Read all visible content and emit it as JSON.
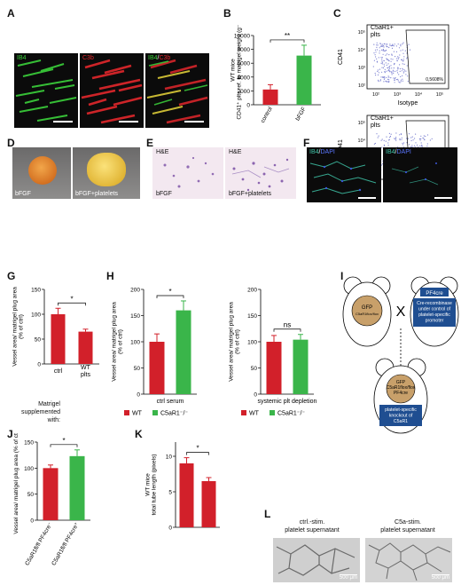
{
  "panels": {
    "A": {
      "letter": "A",
      "ch_ib4": "IB4",
      "ch_c3b": "C3b",
      "ch_merge_a": "IB4",
      "ch_merge_sep": "/",
      "ch_merge_b": "C3b"
    },
    "B": {
      "letter": "B"
    },
    "C": {
      "letter": "C",
      "top": {
        "gate_label": "C5aR1+\nplts",
        "gate_value": "0,5608%",
        "xlabel": "Isotype",
        "ylabel": "CD41"
      },
      "bottom": {
        "gate_label": "C5aR1+\nplts",
        "gate_value": "19,9127%",
        "xlabel": "C5aR1",
        "ylabel": "CD41"
      },
      "ticks": [
        "10²",
        "10³",
        "10⁴",
        "10⁵"
      ]
    },
    "D": {
      "letter": "D",
      "left": "bFGF",
      "right": "bFGF+platelets"
    },
    "E": {
      "letter": "E",
      "left_title": "H&E",
      "right_title": "H&E",
      "left": "bFGF",
      "right": "bFGF+platelets"
    },
    "F": {
      "letter": "F",
      "a": "IB4",
      "sep": "/",
      "b": "DAPI"
    },
    "G": {
      "letter": "G",
      "supp": "Matrigel\nsupplemented\nwith:"
    },
    "H": {
      "letter": "H",
      "legend_wt": "WT",
      "legend_ko": "C5aR1⁻/⁻"
    },
    "I": {
      "letter": "I",
      "mouse1": "GFP\nC5aR1flox/flox",
      "mouse2_title": "PF4cre",
      "mouse2_text": "Cre-recombinase\nunder control of\nplatelet-specific\npromoter",
      "mouse3": "GFP\nC5aR1flox/flox\nPF4cre",
      "mouse3_text": "platelet-specific\nknockout of\nC5aR1",
      "cross": "X"
    },
    "J": {
      "letter": "J"
    },
    "K": {
      "letter": "K"
    },
    "L": {
      "letter": "L",
      "left": "ctrl.-stim.\nplatelet supernatant",
      "right": "C5a-stim.\nplatelet supernatant",
      "scale_left": "500 μm",
      "scale_right": "500 μm"
    }
  },
  "chart_data": [
    {
      "panel": "B",
      "type": "bar",
      "title": "",
      "xlabel": "",
      "ylabel": "WT mice\nCD41⁺ plts ref. to matrigel weight (g⁻¹)",
      "ylim": [
        0,
        10000
      ],
      "yticks": [
        0,
        2000,
        4000,
        6000,
        8000,
        10000
      ],
      "categories": [
        "control",
        "bFGF"
      ],
      "values": [
        2200,
        7100
      ],
      "errors": [
        700,
        1500
      ],
      "colors": [
        "#d2202a",
        "#3ab54a"
      ],
      "significance": "**"
    },
    {
      "panel": "G",
      "type": "bar",
      "title": "",
      "xlabel": "",
      "ylabel": "Vessel area/ matrigel plug area\n(% of ctrl)",
      "ylim": [
        0,
        150
      ],
      "yticks": [
        0,
        50,
        100,
        150
      ],
      "categories": [
        "ctrl",
        "WT\nplts"
      ],
      "values": [
        100,
        65
      ],
      "errors": [
        12,
        5
      ],
      "colors": [
        "#d2202a",
        "#d2202a"
      ],
      "significance": "*"
    },
    {
      "panel": "H-left",
      "type": "bar",
      "title": "",
      "xlabel": "ctrl serum",
      "ylabel": "Vessel area/ matrigel plug area\n(% of ctrl)",
      "ylim": [
        0,
        200
      ],
      "yticks": [
        0,
        50,
        100,
        150,
        200
      ],
      "series": [
        {
          "name": "WT",
          "values": [
            100
          ]
        },
        {
          "name": "C5aR1⁻/⁻",
          "values": [
            160
          ]
        }
      ],
      "errors": [
        15,
        18
      ],
      "colors": [
        "#d2202a",
        "#3ab54a"
      ],
      "significance": "*"
    },
    {
      "panel": "H-right",
      "type": "bar",
      "title": "",
      "xlabel": "systemic plt depletion",
      "ylabel": "Vessel area/ matrigel plug area\n(% of ctrl)",
      "ylim": [
        0,
        200
      ],
      "yticks": [
        0,
        50,
        100,
        150,
        200
      ],
      "series": [
        {
          "name": "WT",
          "values": [
            100
          ]
        },
        {
          "name": "C5aR1⁻/⁻",
          "values": [
            104
          ]
        }
      ],
      "errors": [
        12,
        10
      ],
      "colors": [
        "#d2202a",
        "#3ab54a"
      ],
      "significance": "ns"
    },
    {
      "panel": "J",
      "type": "bar",
      "title": "",
      "xlabel": "",
      "ylabel": "Vessel area/ matrigel plug area (% of ctrl)",
      "ylim": [
        0,
        150
      ],
      "yticks": [
        0,
        50,
        100,
        150
      ],
      "categories": [
        "C5aR1fl/fl PF4cre⁻",
        "C5aR1fl/fl PF4cre⁺"
      ],
      "values": [
        100,
        123
      ],
      "errors": [
        6,
        12
      ],
      "colors": [
        "#d2202a",
        "#3ab54a"
      ],
      "significance": "*"
    },
    {
      "panel": "K",
      "type": "bar",
      "title": "",
      "xlabel": "",
      "ylabel": "WT mice\ntotal tube length (pixels)",
      "ylim": [
        0,
        12
      ],
      "yticks": [
        0,
        5,
        10
      ],
      "categories": [
        "",
        ""
      ],
      "values": [
        9,
        6.5
      ],
      "errors": [
        0.8,
        0.5
      ],
      "colors": [
        "#d2202a",
        "#d2202a"
      ],
      "significance": "*"
    }
  ]
}
